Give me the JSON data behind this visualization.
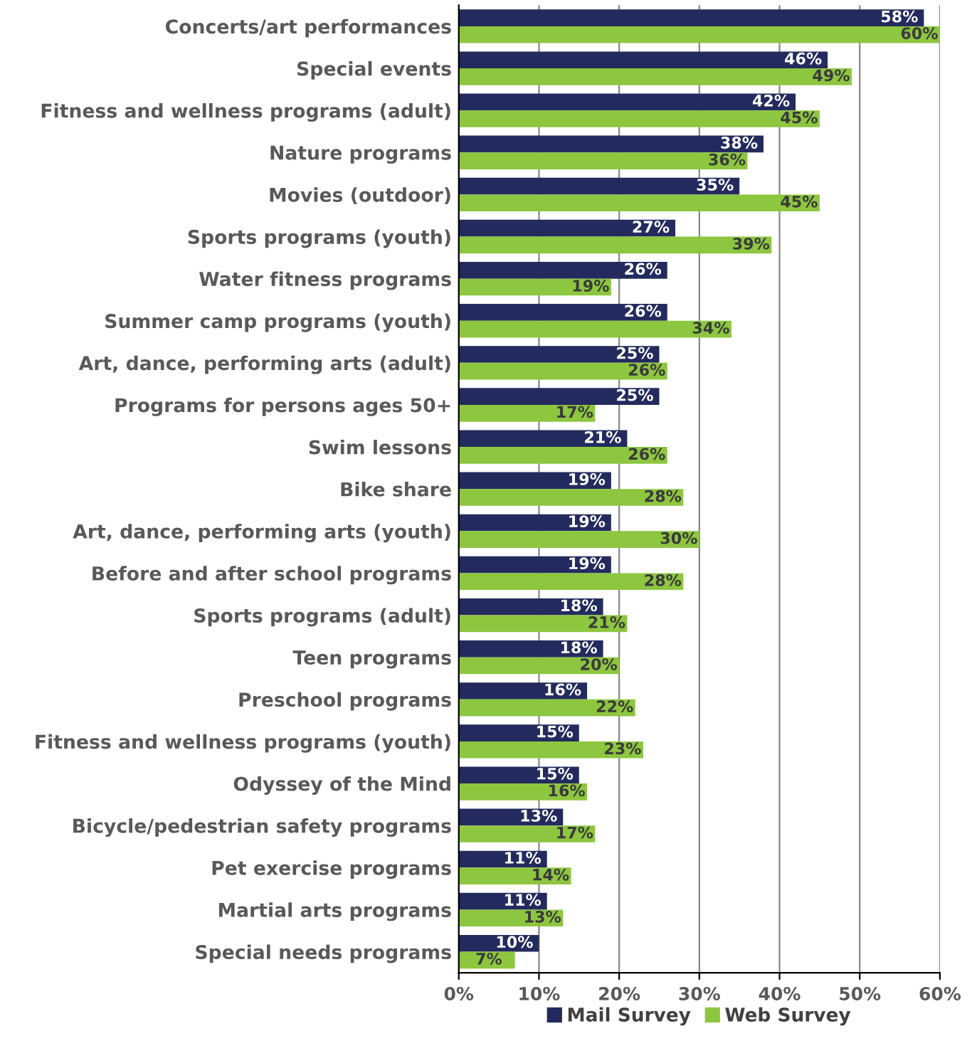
{
  "chart_data": {
    "type": "bar",
    "orientation": "horizontal",
    "categories": [
      "Concerts/art performances",
      "Special events",
      "Fitness and wellness programs (adult)",
      "Nature programs",
      "Movies (outdoor)",
      "Sports programs (youth)",
      "Water fitness programs",
      "Summer camp programs (youth)",
      "Art, dance, performing arts (adult)",
      "Programs for persons ages 50+",
      "Swim lessons",
      "Bike share",
      "Art, dance, performing arts (youth)",
      "Before and after school programs",
      "Sports programs (adult)",
      "Teen programs",
      "Preschool programs",
      "Fitness and wellness programs (youth)",
      "Odyssey of the Mind",
      "Bicycle/pedestrian safety programs",
      "Pet exercise programs",
      "Martial arts programs",
      "Special needs programs"
    ],
    "series": [
      {
        "name": "Mail Survey",
        "color": "#232b5e",
        "values": [
          58,
          46,
          42,
          38,
          35,
          27,
          26,
          26,
          25,
          25,
          21,
          19,
          19,
          19,
          18,
          18,
          16,
          15,
          15,
          13,
          11,
          11,
          10
        ],
        "value_labels": [
          "58%",
          "46%",
          "42%",
          "38%",
          "35%",
          "27%",
          "26%",
          "26%",
          "25%",
          "25%",
          "21%",
          "19%",
          "19%",
          "19%",
          "18%",
          "18%",
          "16%",
          "15%",
          "15%",
          "13%",
          "11%",
          "11%",
          "10%"
        ]
      },
      {
        "name": "Web Survey",
        "color": "#8dc63f",
        "values": [
          60,
          49,
          45,
          36,
          45,
          39,
          19,
          34,
          26,
          17,
          26,
          28,
          30,
          28,
          21,
          20,
          22,
          23,
          16,
          17,
          14,
          13,
          7
        ],
        "value_labels": [
          "60%",
          "49%",
          "45%",
          "36%",
          "45%",
          "39%",
          "19%",
          "34%",
          "26%",
          "17%",
          "26%",
          "28%",
          "30%",
          "28%",
          "21%",
          "20%",
          "22%",
          "23%",
          "16%",
          "17%",
          "14%",
          "13%",
          "7%"
        ]
      }
    ],
    "xlim": [
      0,
      60
    ],
    "xticks": [
      {
        "value": 0,
        "label": "0%"
      },
      {
        "value": 10,
        "label": "10%"
      },
      {
        "value": 20,
        "label": "20%"
      },
      {
        "value": 30,
        "label": "30%"
      },
      {
        "value": 40,
        "label": "40%"
      },
      {
        "value": 50,
        "label": "50%"
      },
      {
        "value": 60,
        "label": "60%"
      }
    ],
    "grid": "x",
    "legend": "bottom"
  }
}
